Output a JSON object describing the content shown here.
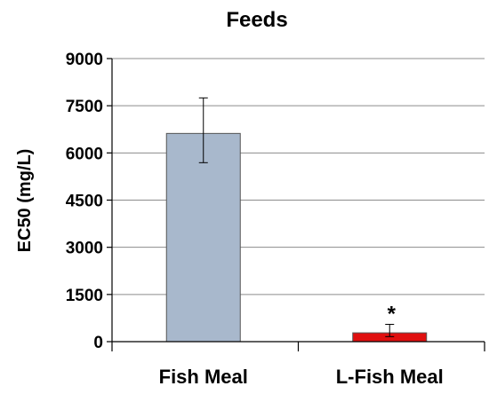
{
  "chart_data": {
    "type": "bar",
    "title": "Feeds",
    "ylabel": "EC50 (mg/L)",
    "xlabel": "",
    "ylim": [
      0,
      9000
    ],
    "yticks": [
      0,
      1500,
      3000,
      4500,
      6000,
      7500,
      9000
    ],
    "yticklabels": [
      "0",
      "1500",
      "3000",
      "4500",
      "6000",
      "7500",
      "9000"
    ],
    "grid": "horizontal",
    "categories": [
      "Fish Meal",
      "L-Fish Meal"
    ],
    "values": [
      6620,
      280
    ],
    "error_upper": [
      1130,
      270
    ],
    "error_lower": [
      930,
      120
    ],
    "colors": [
      "#a8b8cc",
      "#e01010"
    ],
    "annotations": [
      {
        "category": "L-Fish Meal",
        "text": "*"
      }
    ]
  }
}
